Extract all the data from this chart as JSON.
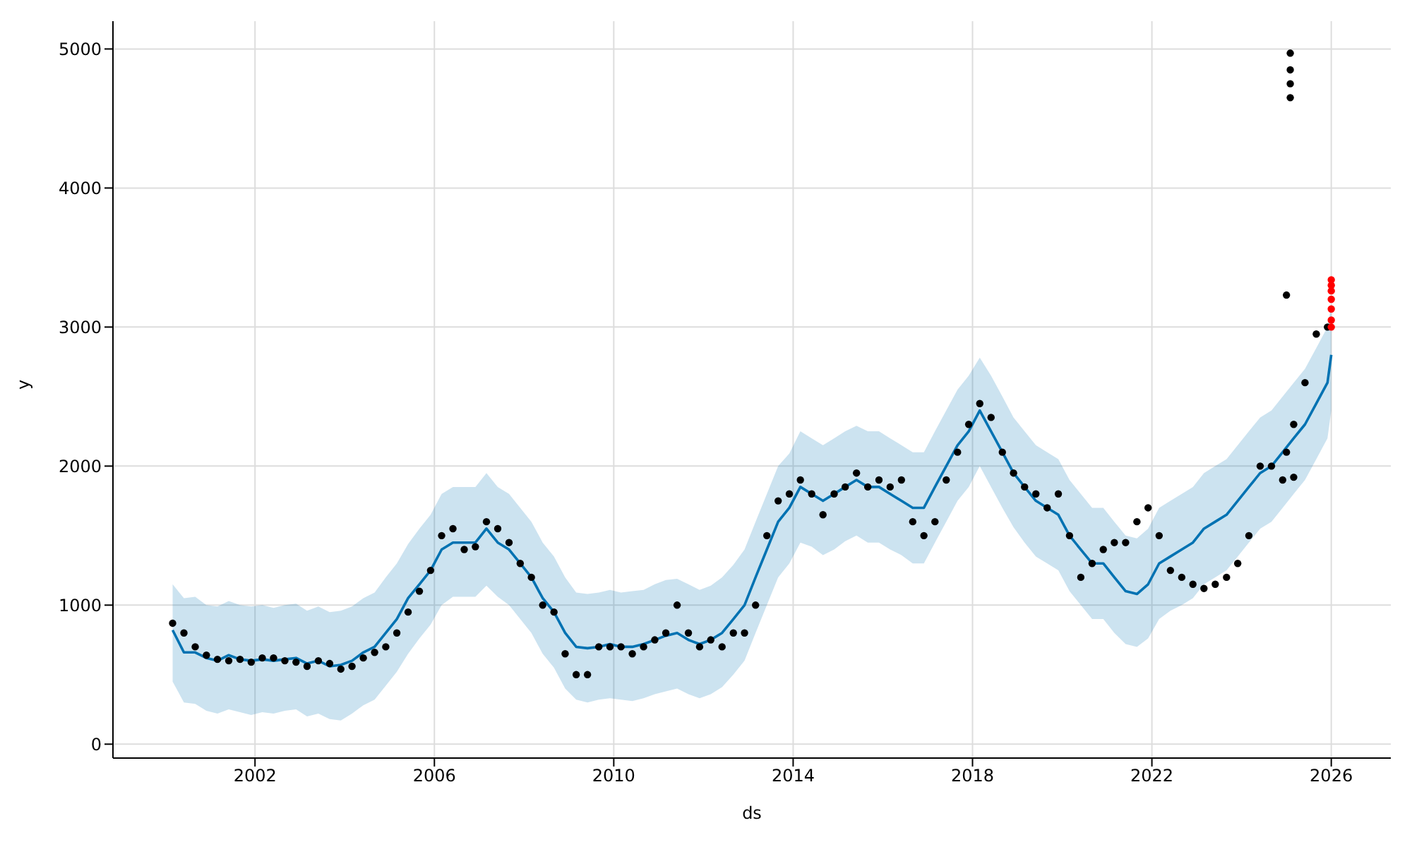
{
  "chart_data": {
    "type": "scatter",
    "xlabel": "ds",
    "ylabel": "y",
    "xlim": [
      "1998-11",
      "2027-05"
    ],
    "ylim": [
      -100,
      5200
    ],
    "xticks": [
      {
        "value": "2002-01-01",
        "label": "2002"
      },
      {
        "value": "2006-01-01",
        "label": "2006"
      },
      {
        "value": "2010-01-01",
        "label": "2010"
      },
      {
        "value": "2014-01-01",
        "label": "2014"
      },
      {
        "value": "2018-01-01",
        "label": "2018"
      },
      {
        "value": "2022-01-01",
        "label": "2022"
      },
      {
        "value": "2026-01-01",
        "label": "2026"
      }
    ],
    "yticks": [
      0,
      1000,
      2000,
      3000,
      4000,
      5000
    ],
    "grid": true,
    "marker": "circle",
    "series": [
      {
        "type": "line",
        "marker": "none",
        "color": "#0072b2",
        "x": [
          "2000-03",
          "2000-06",
          "2000-09",
          "2000-12",
          "2001-03",
          "2001-06",
          "2001-09",
          "2001-12",
          "2002-03",
          "2002-06",
          "2002-09",
          "2002-12",
          "2003-03",
          "2003-06",
          "2003-09",
          "2003-12",
          "2004-03",
          "2004-06",
          "2004-09",
          "2004-12",
          "2005-03",
          "2005-06",
          "2005-09",
          "2005-12",
          "2006-03",
          "2006-06",
          "2006-09",
          "2006-12",
          "2007-03",
          "2007-06",
          "2007-09",
          "2007-12",
          "2008-03",
          "2008-06",
          "2008-09",
          "2008-12",
          "2009-03",
          "2009-06",
          "2009-09",
          "2009-12",
          "2010-03",
          "2010-06",
          "2010-09",
          "2010-12",
          "2011-03",
          "2011-06",
          "2011-09",
          "2011-12",
          "2012-03",
          "2012-06",
          "2012-09",
          "2012-12",
          "2013-03",
          "2013-06",
          "2013-09",
          "2013-12",
          "2014-03",
          "2014-06",
          "2014-09",
          "2014-12",
          "2015-03",
          "2015-06",
          "2015-09",
          "2015-12",
          "2016-03",
          "2016-06",
          "2016-09",
          "2016-12",
          "2017-03",
          "2017-06",
          "2017-09",
          "2017-12",
          "2018-03",
          "2018-06",
          "2018-09",
          "2018-12",
          "2019-03",
          "2019-06",
          "2019-09",
          "2019-12",
          "2020-03",
          "2020-06",
          "2020-09",
          "2020-12",
          "2021-03",
          "2021-06",
          "2021-09",
          "2021-12",
          "2022-03",
          "2022-06",
          "2022-09",
          "2022-12",
          "2023-03",
          "2023-06",
          "2023-09",
          "2023-12",
          "2024-03",
          "2024-06",
          "2024-09",
          "2024-12",
          "2025-03",
          "2025-06",
          "2025-09",
          "2025-12",
          "2026-01"
        ],
        "values": [
          820,
          660,
          660,
          620,
          600,
          640,
          610,
          600,
          610,
          600,
          610,
          620,
          580,
          600,
          560,
          570,
          600,
          660,
          700,
          800,
          900,
          1050,
          1150,
          1250,
          1400,
          1450,
          1450,
          1450,
          1550,
          1450,
          1400,
          1300,
          1200,
          1050,
          950,
          800,
          700,
          690,
          700,
          720,
          700,
          700,
          720,
          750,
          780,
          800,
          750,
          720,
          750,
          800,
          900,
          1000,
          1200,
          1400,
          1600,
          1700,
          1850,
          1800,
          1750,
          1800,
          1850,
          1900,
          1850,
          1850,
          1800,
          1750,
          1700,
          1700,
          1850,
          2000,
          2150,
          2250,
          2400,
          2250,
          2100,
          1950,
          1850,
          1750,
          1700,
          1650,
          1500,
          1400,
          1300,
          1300,
          1200,
          1100,
          1080,
          1150,
          1300,
          1350,
          1400,
          1450,
          1550,
          1600,
          1650,
          1750,
          1850,
          1950,
          2000,
          2100,
          2200,
          2300,
          2450,
          2600,
          2800
        ],
        "lower": [
          450,
          300,
          290,
          240,
          220,
          250,
          230,
          210,
          230,
          220,
          240,
          250,
          200,
          220,
          180,
          170,
          220,
          280,
          320,
          420,
          520,
          650,
          760,
          860,
          1000,
          1060,
          1060,
          1060,
          1140,
          1060,
          1000,
          900,
          800,
          650,
          550,
          400,
          320,
          300,
          320,
          330,
          320,
          310,
          330,
          360,
          380,
          400,
          360,
          330,
          360,
          410,
          500,
          600,
          800,
          1000,
          1200,
          1300,
          1450,
          1420,
          1360,
          1400,
          1460,
          1500,
          1450,
          1450,
          1400,
          1360,
          1300,
          1300,
          1450,
          1600,
          1750,
          1850,
          2000,
          1850,
          1700,
          1560,
          1450,
          1350,
          1300,
          1250,
          1100,
          1000,
          900,
          900,
          800,
          720,
          700,
          760,
          900,
          960,
          1000,
          1050,
          1150,
          1200,
          1250,
          1350,
          1450,
          1550,
          1600,
          1700,
          1800,
          1900,
          2050,
          2200,
          2400
        ],
        "upper": [
          1150,
          1050,
          1060,
          1000,
          990,
          1030,
          1000,
          990,
          1000,
          980,
          1000,
          1010,
          960,
          990,
          950,
          960,
          990,
          1050,
          1090,
          1200,
          1300,
          1440,
          1550,
          1650,
          1800,
          1850,
          1850,
          1850,
          1950,
          1850,
          1800,
          1700,
          1600,
          1450,
          1350,
          1200,
          1090,
          1080,
          1090,
          1110,
          1090,
          1100,
          1110,
          1150,
          1180,
          1190,
          1150,
          1110,
          1140,
          1200,
          1290,
          1400,
          1600,
          1800,
          2000,
          2090,
          2250,
          2200,
          2150,
          2200,
          2250,
          2290,
          2250,
          2250,
          2200,
          2150,
          2100,
          2100,
          2250,
          2400,
          2550,
          2650,
          2780,
          2650,
          2500,
          2350,
          2250,
          2150,
          2100,
          2050,
          1900,
          1800,
          1700,
          1700,
          1600,
          1500,
          1480,
          1550,
          1700,
          1750,
          1800,
          1850,
          1950,
          2000,
          2050,
          2150,
          2250,
          2350,
          2400,
          2500,
          2600,
          2700,
          2850,
          3000,
          3150
        ]
      },
      {
        "color": "#000000",
        "x": [
          "2000-03",
          "2000-06",
          "2000-09",
          "2000-12",
          "2001-03",
          "2001-06",
          "2001-09",
          "2001-12",
          "2002-03",
          "2002-06",
          "2002-09",
          "2002-12",
          "2003-03",
          "2003-06",
          "2003-09",
          "2003-12",
          "2004-03",
          "2004-06",
          "2004-09",
          "2004-12",
          "2005-03",
          "2005-06",
          "2005-09",
          "2005-12",
          "2006-03",
          "2006-06",
          "2006-09",
          "2006-12",
          "2007-03",
          "2007-06",
          "2007-09",
          "2007-12",
          "2008-03",
          "2008-06",
          "2008-09",
          "2008-12",
          "2009-03",
          "2009-06",
          "2009-09",
          "2009-12",
          "2010-03",
          "2010-06",
          "2010-09",
          "2010-12",
          "2011-03",
          "2011-06",
          "2011-09",
          "2011-12",
          "2012-03",
          "2012-06",
          "2012-09",
          "2012-12",
          "2013-03",
          "2013-06",
          "2013-09",
          "2013-12",
          "2014-03",
          "2014-06",
          "2014-09",
          "2014-12",
          "2015-03",
          "2015-06",
          "2015-09",
          "2015-12",
          "2016-03",
          "2016-06",
          "2016-09",
          "2016-12",
          "2017-03",
          "2017-06",
          "2017-09",
          "2017-12",
          "2018-03",
          "2018-06",
          "2018-09",
          "2018-12",
          "2019-03",
          "2019-06",
          "2019-09",
          "2019-12",
          "2020-03",
          "2020-06",
          "2020-09",
          "2020-12",
          "2021-03",
          "2021-06",
          "2021-09",
          "2021-12",
          "2022-03",
          "2022-06",
          "2022-09",
          "2022-12",
          "2023-03",
          "2023-06",
          "2023-09",
          "2023-12",
          "2024-03",
          "2024-06",
          "2024-09",
          "2024-12",
          "2025-01",
          "2025-01",
          "2025-02",
          "2025-02",
          "2025-02",
          "2025-02",
          "2025-03",
          "2025-03",
          "2025-06",
          "2025-09",
          "2025-12"
        ],
        "values": [
          870,
          800,
          700,
          640,
          610,
          600,
          610,
          590,
          620,
          620,
          600,
          590,
          560,
          600,
          580,
          540,
          560,
          620,
          660,
          700,
          800,
          950,
          1100,
          1250,
          1500,
          1550,
          1400,
          1420,
          1600,
          1550,
          1450,
          1300,
          1200,
          1000,
          950,
          650,
          500,
          500,
          700,
          700,
          700,
          650,
          700,
          750,
          800,
          1000,
          800,
          700,
          750,
          700,
          800,
          800,
          1000,
          1500,
          1750,
          1800,
          1900,
          1800,
          1650,
          1800,
          1850,
          1950,
          1850,
          1900,
          1850,
          1900,
          1600,
          1500,
          1600,
          1900,
          2100,
          2300,
          2450,
          2350,
          2100,
          1950,
          1850,
          1800,
          1700,
          1800,
          1500,
          1200,
          1300,
          1400,
          1450,
          1450,
          1600,
          1700,
          1500,
          1250,
          1200,
          1150,
          1120,
          1150,
          1200,
          1300,
          1500,
          2000,
          2000,
          1900,
          2100,
          3230,
          4650,
          4750,
          4850,
          4970,
          2300,
          1920,
          2600,
          2950,
          3000
        ]
      },
      {
        "color": "#ff0000",
        "x": [
          "2026-01",
          "2026-01",
          "2026-01",
          "2026-01",
          "2026-01",
          "2026-01",
          "2026-01"
        ],
        "values": [
          3340,
          3300,
          3260,
          3200,
          3130,
          3050,
          3000
        ]
      }
    ]
  }
}
